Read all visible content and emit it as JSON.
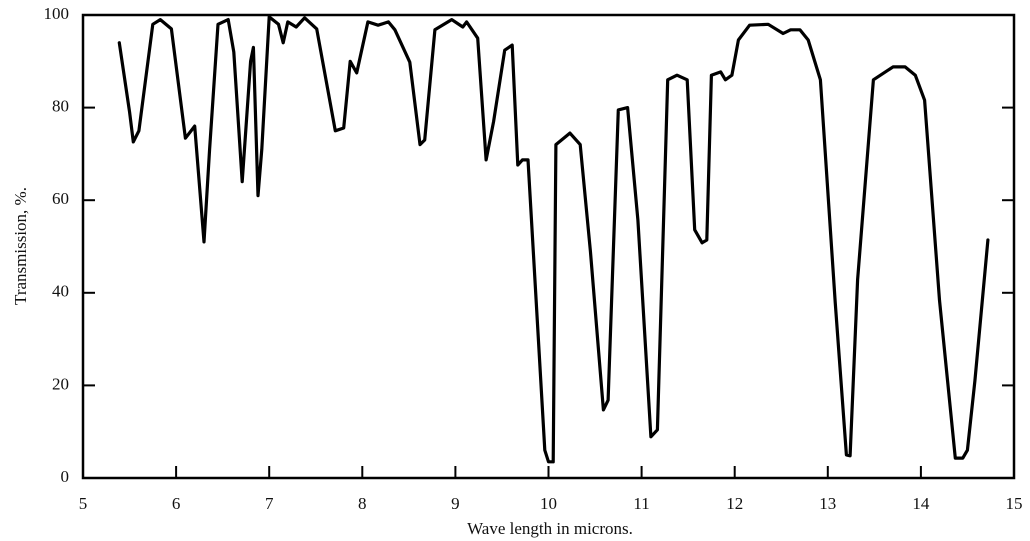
{
  "chart_data": {
    "type": "line",
    "xlabel": "Wave length in microns.",
    "ylabel": "Transmission, %.",
    "color": "#000000",
    "xlim": [
      5,
      15
    ],
    "xticks": [
      5,
      6,
      7,
      8,
      9,
      10,
      11,
      12,
      13,
      14,
      15
    ],
    "ylim": [
      0,
      100
    ],
    "yticks": [
      0,
      20,
      40,
      60,
      80,
      100
    ],
    "grid": false,
    "x": [
      5.39,
      5.5,
      5.54,
      5.6,
      5.75,
      5.83,
      5.95,
      6.1,
      6.2,
      6.3,
      6.36,
      6.45,
      6.56,
      6.62,
      6.71,
      6.8,
      6.83,
      6.88,
      6.92,
      7.0,
      7.1,
      7.15,
      7.2,
      7.29,
      7.38,
      7.51,
      7.71,
      7.8,
      7.87,
      7.94,
      8.06,
      8.17,
      8.28,
      8.35,
      8.51,
      8.62,
      8.67,
      8.78,
      8.96,
      9.08,
      9.12,
      9.24,
      9.33,
      9.41,
      9.53,
      9.61,
      9.67,
      9.72,
      9.78,
      9.96,
      10.0,
      10.05,
      10.08,
      10.23,
      10.34,
      10.45,
      10.59,
      10.64,
      10.75,
      10.85,
      10.96,
      11.1,
      11.17,
      11.28,
      11.38,
      11.49,
      11.57,
      11.65,
      11.7,
      11.75,
      11.85,
      11.9,
      11.97,
      12.04,
      12.16,
      12.36,
      12.52,
      12.6,
      12.7,
      12.79,
      12.92,
      13.08,
      13.2,
      13.24,
      13.32,
      13.49,
      13.7,
      13.83,
      13.94,
      14.04,
      14.2,
      14.37,
      14.45,
      14.5,
      14.58,
      14.72
    ],
    "values": [
      94,
      79,
      72.6,
      75,
      98,
      99,
      97,
      73.4,
      76,
      51,
      71,
      98,
      99,
      92,
      64,
      90,
      93,
      61,
      71,
      99.6,
      98,
      94,
      98.5,
      97.4,
      99.4,
      97,
      75,
      75.6,
      90,
      87.5,
      98.5,
      97.8,
      98.5,
      96.8,
      89.8,
      72,
      73,
      96.8,
      99,
      97.4,
      98.5,
      95,
      68.7,
      77,
      92.4,
      93.5,
      67.6,
      68.7,
      68.7,
      6,
      3.5,
      3.5,
      72,
      74.5,
      72,
      49,
      14.7,
      16.8,
      79.5,
      80,
      55.7,
      8.9,
      10.4,
      86,
      87,
      86,
      53.6,
      50.8,
      51.4,
      87,
      87.7,
      86,
      87,
      94.6,
      97.8,
      98,
      96,
      96.8,
      96.8,
      94.6,
      86,
      38,
      5,
      4.8,
      42.8,
      86,
      88.8,
      88.8,
      87,
      81.6,
      38.4,
      4.3,
      4.3,
      6,
      21,
      51.4
    ]
  }
}
